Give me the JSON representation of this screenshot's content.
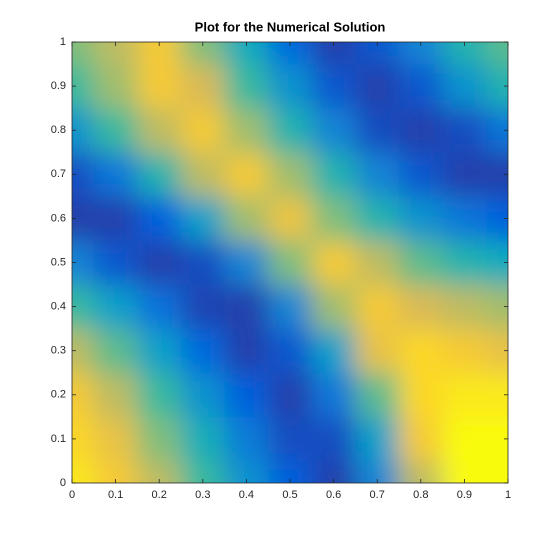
{
  "chart_data": {
    "type": "contourf",
    "title": "Plot for the Numerical Solution",
    "x": [
      0,
      0.1,
      0.2,
      0.3,
      0.4,
      0.5,
      0.6,
      0.7,
      0.8,
      0.9,
      1
    ],
    "y": [
      0,
      0.1,
      0.2,
      0.3,
      0.4,
      0.5,
      0.6,
      0.7,
      0.8,
      0.9,
      1
    ],
    "z": [
      [
        0.95,
        0.85,
        0.7,
        0.5,
        0.3,
        0.12,
        0.05,
        0.25,
        0.7,
        1.0,
        1.0
      ],
      [
        0.9,
        0.8,
        0.6,
        0.42,
        0.22,
        0.08,
        0.08,
        0.35,
        0.85,
        1.0,
        1.0
      ],
      [
        0.85,
        0.7,
        0.5,
        0.3,
        0.12,
        0.05,
        0.2,
        0.55,
        0.9,
        0.95,
        0.95
      ],
      [
        0.7,
        0.55,
        0.35,
        0.15,
        0.05,
        0.1,
        0.35,
        0.8,
        0.9,
        0.85,
        0.8
      ],
      [
        0.5,
        0.35,
        0.18,
        0.06,
        0.05,
        0.25,
        0.65,
        0.85,
        0.75,
        0.7,
        0.65
      ],
      [
        0.25,
        0.1,
        0.05,
        0.08,
        0.25,
        0.6,
        0.85,
        0.7,
        0.55,
        0.45,
        0.4
      ],
      [
        0.05,
        0.05,
        0.12,
        0.35,
        0.65,
        0.82,
        0.6,
        0.45,
        0.3,
        0.2,
        0.12
      ],
      [
        0.08,
        0.2,
        0.45,
        0.7,
        0.85,
        0.65,
        0.45,
        0.25,
        0.1,
        0.05,
        0.05
      ],
      [
        0.3,
        0.5,
        0.7,
        0.85,
        0.65,
        0.45,
        0.25,
        0.08,
        0.05,
        0.08,
        0.2
      ],
      [
        0.5,
        0.65,
        0.85,
        0.75,
        0.5,
        0.3,
        0.1,
        0.05,
        0.1,
        0.3,
        0.45
      ],
      [
        0.6,
        0.7,
        0.85,
        0.6,
        0.4,
        0.15,
        0.05,
        0.1,
        0.25,
        0.45,
        0.55
      ]
    ],
    "zlim": [
      0,
      1
    ],
    "colormap": [
      "#352a87",
      "#0363e1",
      "#1485d4",
      "#06a7c6",
      "#38b99e",
      "#92bf73",
      "#d9ba56",
      "#fcce2e",
      "#f9fb0e"
    ],
    "xlim": [
      0,
      1
    ],
    "ylim": [
      0,
      1
    ],
    "xticks": [
      0,
      0.1,
      0.2,
      0.3,
      0.4,
      0.5,
      0.6,
      0.7,
      0.8,
      0.9,
      1
    ],
    "yticks": [
      0,
      0.1,
      0.2,
      0.3,
      0.4,
      0.5,
      0.6,
      0.7,
      0.8,
      0.9,
      1
    ]
  }
}
